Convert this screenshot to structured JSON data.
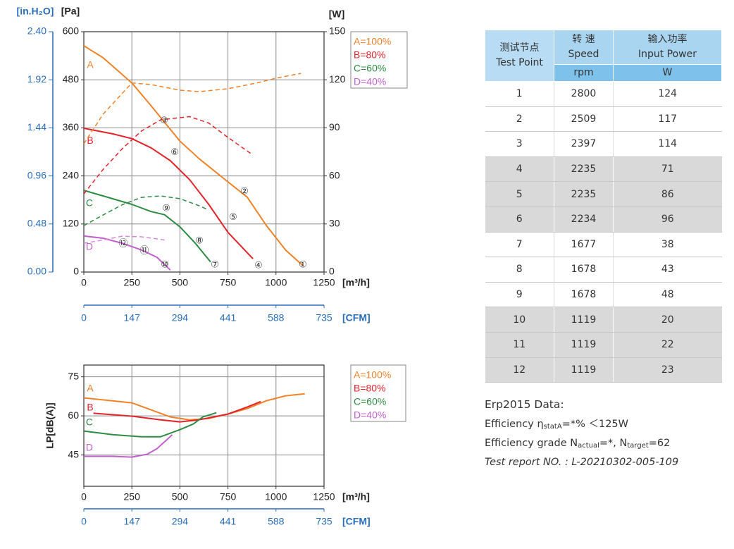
{
  "chart_data": [
    {
      "type": "line",
      "y3_label": "[in.H₂O]",
      "ylabel": "[Pa]",
      "y2label": "[W]",
      "xlabel": "[m³/h]",
      "x2label": "[CFM]",
      "xlim": [
        0,
        1250
      ],
      "xticks": [
        0,
        250,
        500,
        750,
        1000,
        1250
      ],
      "x2lim": [
        0,
        735
      ],
      "x2ticks": [
        0,
        147,
        294,
        441,
        588,
        735
      ],
      "ylim": [
        0,
        600
      ],
      "yticks": [
        0,
        120,
        240,
        360,
        480,
        600
      ],
      "y2lim": [
        0,
        150
      ],
      "y2ticks": [
        0,
        30,
        60,
        90,
        120,
        150
      ],
      "y3lim": [
        0,
        2.4
      ],
      "y3ticks": [
        {
          "value": 0,
          "label": "0.00"
        },
        {
          "value": 0.48,
          "label": "0.48"
        },
        {
          "value": 0.96,
          "label": "0.96"
        },
        {
          "value": 1.44,
          "label": "1.44"
        },
        {
          "value": 1.92,
          "label": "1.92"
        },
        {
          "value": 2.4,
          "label": "2.40"
        }
      ],
      "grid": true,
      "legend": [
        "A=100%",
        "B=80%",
        "C=60%",
        "D=40%"
      ],
      "series": [
        {
          "name": "A",
          "label_at": [
            33,
            516
          ],
          "color": "#f0822a",
          "x": [
            0,
            100,
            250,
            350,
            500,
            600,
            750,
            850,
            950,
            1050,
            1140
          ],
          "values": [
            565,
            535,
            472,
            415,
            327,
            283,
            225,
            187,
            116,
            55,
            16
          ]
        },
        {
          "name": "B",
          "label_at": [
            33,
            327
          ],
          "color": "#e3242b",
          "x": [
            0,
            150,
            250,
            350,
            450,
            550,
            650,
            750,
            880
          ],
          "values": [
            359,
            345,
            333,
            310,
            278,
            231,
            169,
            99,
            33
          ]
        },
        {
          "name": "C",
          "label_at": [
            29,
            171
          ],
          "color": "#2e8b45",
          "x": [
            0,
            100,
            250,
            350,
            420,
            500,
            580,
            660
          ],
          "values": [
            204,
            190,
            169,
            151,
            143,
            113,
            72,
            25
          ]
        },
        {
          "name": "D",
          "label_at": [
            29,
            62
          ],
          "color": "#c061cc",
          "x": [
            0,
            100,
            200,
            300,
            380,
            450
          ],
          "values": [
            90,
            84.5,
            72,
            55,
            37,
            5
          ]
        },
        {
          "axis": "y2",
          "style": "dashed",
          "color": "#f0822a",
          "x": [
            0,
            100,
            250,
            350,
            500,
            600,
            750,
            900,
            1000,
            1130
          ],
          "values": [
            80,
            98.5,
            118,
            117,
            113.5,
            112.6,
            114.4,
            118,
            121,
            124
          ]
        },
        {
          "axis": "y2",
          "style": "dashed",
          "color": "#e3242b",
          "x": [
            0,
            100,
            200,
            300,
            400,
            550,
            650,
            750,
            880
          ],
          "values": [
            48.8,
            64,
            77,
            88,
            95,
            97,
            93,
            84,
            73
          ]
        },
        {
          "axis": "y2",
          "style": "dashed",
          "color": "#2e8b45",
          "x": [
            0,
            100,
            200,
            300,
            400,
            500,
            600,
            650
          ],
          "values": [
            29,
            35.6,
            42,
            46.6,
            47.5,
            45.8,
            41.4,
            38.7
          ]
        },
        {
          "axis": "y2",
          "style": "dashed",
          "color": "#d88ad8",
          "x": [
            0,
            100,
            200,
            300,
            420
          ],
          "values": [
            18,
            20,
            22.4,
            22,
            20
          ]
        }
      ],
      "annotations": [
        {
          "text": "①",
          "x": 1140,
          "y": 18
        },
        {
          "text": "②",
          "x": 836,
          "y": 201
        },
        {
          "text": "③",
          "x": 418,
          "y": 377
        },
        {
          "text": "④",
          "x": 909,
          "y": 16
        },
        {
          "text": "⑤",
          "x": 777,
          "y": 136
        },
        {
          "text": "⑥",
          "x": 473,
          "y": 298
        },
        {
          "text": "⑦",
          "x": 682,
          "y": 18
        },
        {
          "text": "⑧",
          "x": 601,
          "y": 77
        },
        {
          "text": "⑨",
          "x": 429,
          "y": 158
        },
        {
          "text": "⑩",
          "x": 422,
          "y": 18
        },
        {
          "text": "⑪",
          "x": 315,
          "y": 53
        },
        {
          "text": "⑫",
          "x": 205,
          "y": 70
        }
      ]
    },
    {
      "type": "line",
      "ylabel": "LP[dB(A)]",
      "xlabel": "[m³/h]",
      "x2label": "[CFM]",
      "xlim": [
        0,
        1250
      ],
      "xticks": [
        0,
        250,
        500,
        750,
        1000,
        1250
      ],
      "x2lim": [
        0,
        735
      ],
      "x2ticks": [
        0,
        147,
        294,
        441,
        588,
        735
      ],
      "ylim": [
        33,
        79.5
      ],
      "yticks": [
        45,
        60,
        75
      ],
      "grid": true,
      "legend": [
        "A=100%",
        "B=80%",
        "C=60%",
        "D=40%"
      ],
      "series": [
        {
          "name": "A",
          "label_at": [
            33,
            70.4
          ],
          "color": "#f0822a",
          "x": [
            0,
            250,
            350,
            450,
            550,
            650,
            750,
            850,
            950,
            1050,
            1150
          ],
          "values": [
            66.9,
            65,
            62.3,
            59.6,
            58.5,
            59,
            60.7,
            62.8,
            65.8,
            67.7,
            68.5
          ]
        },
        {
          "name": "B",
          "label_at": [
            33,
            63.1
          ],
          "color": "#e3242b",
          "x": [
            50,
            250,
            400,
            500,
            600,
            750,
            850,
            920
          ],
          "values": [
            61,
            59.9,
            58.5,
            57.7,
            58.5,
            60.7,
            63.4,
            65.5
          ]
        },
        {
          "name": "C",
          "label_at": [
            29,
            57.4
          ],
          "color": "#2e8b45",
          "x": [
            0,
            150,
            300,
            400,
            500,
            570,
            620,
            690
          ],
          "values": [
            54.2,
            52.8,
            52,
            52,
            54.7,
            56.9,
            59.6,
            61.2
          ]
        },
        {
          "name": "D",
          "label_at": [
            29,
            47.7
          ],
          "color": "#c061cc",
          "x": [
            0,
            150,
            250,
            330,
            380,
            430,
            460
          ],
          "values": [
            44.5,
            44.5,
            44.2,
            45.3,
            47.4,
            50.7,
            52.8
          ]
        }
      ]
    }
  ],
  "table": {
    "header": [
      [
        "测试节点",
        "Test Point"
      ],
      [
        "转 速",
        "Speed"
      ],
      [
        "输入功率",
        "Input Power"
      ]
    ],
    "units": [
      "rpm",
      "W"
    ],
    "rows": [
      [
        1,
        2800,
        124
      ],
      [
        2,
        2509,
        117
      ],
      [
        3,
        2397,
        114
      ],
      [
        4,
        2235,
        71
      ],
      [
        5,
        2235,
        86
      ],
      [
        6,
        2234,
        96
      ],
      [
        7,
        1677,
        38
      ],
      [
        8,
        1678,
        43
      ],
      [
        9,
        1678,
        48
      ],
      [
        10,
        1119,
        20
      ],
      [
        11,
        1119,
        22
      ],
      [
        12,
        1119,
        23
      ]
    ]
  },
  "erp": {
    "title": "Erp2015  Data:",
    "efficiency": [
      "Efficiency η",
      "statA",
      "=*%  ＜125W"
    ],
    "grade": [
      "Efficiency grade N",
      "actual",
      "=*, N",
      "target",
      "=62"
    ],
    "report": "Test report NO. : L-20210302-005-109"
  }
}
